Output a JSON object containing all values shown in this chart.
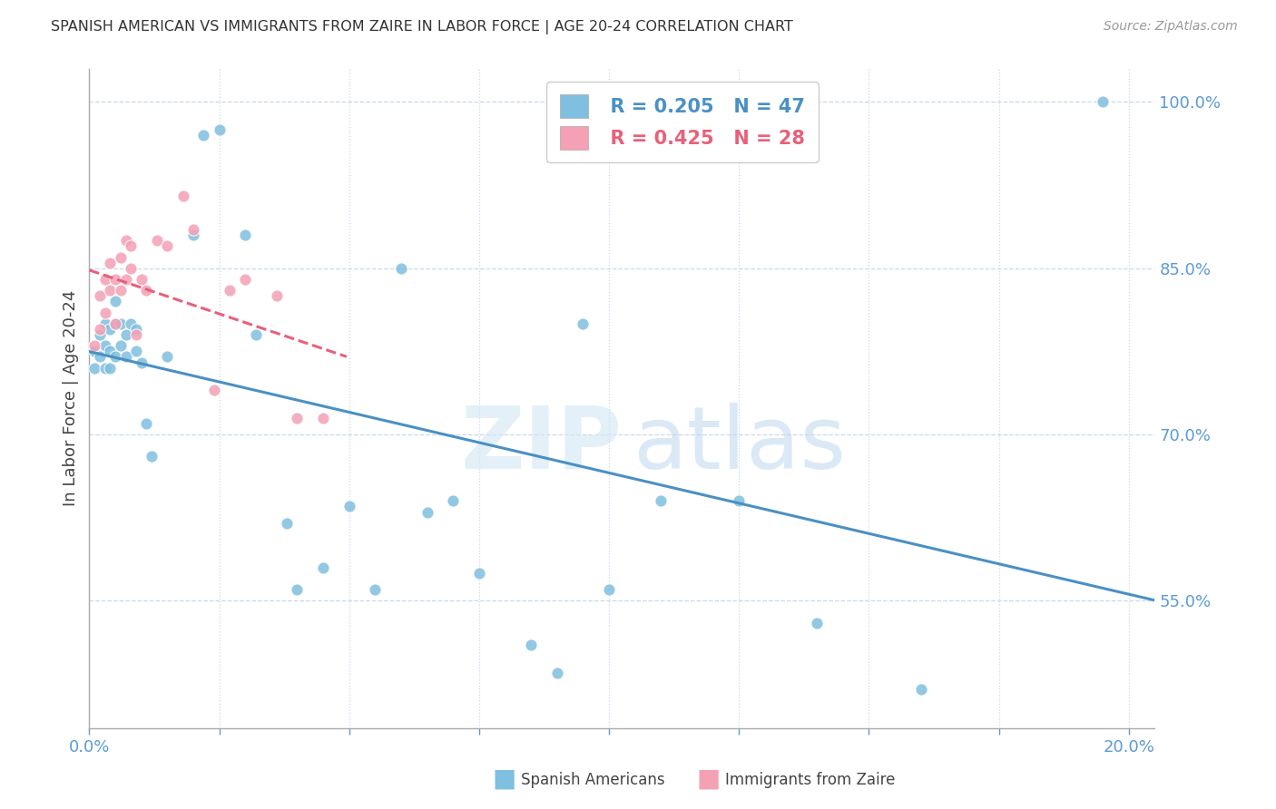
{
  "title": "SPANISH AMERICAN VS IMMIGRANTS FROM ZAIRE IN LABOR FORCE | AGE 20-24 CORRELATION CHART",
  "source": "Source: ZipAtlas.com",
  "ylabel": "In Labor Force | Age 20-24",
  "xlim": [
    0.0,
    0.205
  ],
  "ylim": [
    0.435,
    1.03
  ],
  "xtick_positions": [
    0.0,
    0.025,
    0.05,
    0.075,
    0.1,
    0.125,
    0.15,
    0.175,
    0.2
  ],
  "ytick_right": [
    0.55,
    0.7,
    0.85,
    1.0
  ],
  "ytick_right_labels": [
    "55.0%",
    "70.0%",
    "85.0%",
    "100.0%"
  ],
  "blue_color": "#7fbfdf",
  "pink_color": "#f4a0b5",
  "blue_line_color": "#4a90c4",
  "pink_line_color": "#e8607a",
  "legend_R_blue": "R = 0.205",
  "legend_N_blue": "N = 47",
  "legend_R_pink": "R = 0.425",
  "legend_N_pink": "N = 28",
  "blue_x": [
    0.001,
    0.001,
    0.002,
    0.002,
    0.003,
    0.003,
    0.003,
    0.004,
    0.004,
    0.004,
    0.005,
    0.005,
    0.005,
    0.006,
    0.006,
    0.007,
    0.007,
    0.008,
    0.009,
    0.009,
    0.01,
    0.011,
    0.012,
    0.015,
    0.02,
    0.022,
    0.025,
    0.03,
    0.032,
    0.038,
    0.04,
    0.045,
    0.05,
    0.055,
    0.06,
    0.065,
    0.07,
    0.075,
    0.085,
    0.09,
    0.095,
    0.1,
    0.11,
    0.125,
    0.14,
    0.16,
    0.195
  ],
  "blue_y": [
    0.775,
    0.76,
    0.79,
    0.77,
    0.8,
    0.78,
    0.76,
    0.795,
    0.775,
    0.76,
    0.8,
    0.82,
    0.77,
    0.8,
    0.78,
    0.79,
    0.77,
    0.8,
    0.795,
    0.775,
    0.765,
    0.71,
    0.68,
    0.77,
    0.88,
    0.97,
    0.975,
    0.88,
    0.79,
    0.62,
    0.56,
    0.58,
    0.635,
    0.56,
    0.85,
    0.63,
    0.64,
    0.575,
    0.51,
    0.485,
    0.8,
    0.56,
    0.64,
    0.64,
    0.53,
    0.47,
    1.0
  ],
  "pink_x": [
    0.001,
    0.002,
    0.002,
    0.003,
    0.003,
    0.004,
    0.004,
    0.005,
    0.005,
    0.006,
    0.006,
    0.007,
    0.007,
    0.008,
    0.008,
    0.009,
    0.01,
    0.011,
    0.013,
    0.015,
    0.018,
    0.02,
    0.024,
    0.027,
    0.03,
    0.036,
    0.04,
    0.045
  ],
  "pink_y": [
    0.78,
    0.795,
    0.825,
    0.81,
    0.84,
    0.83,
    0.855,
    0.8,
    0.84,
    0.83,
    0.86,
    0.84,
    0.875,
    0.85,
    0.87,
    0.79,
    0.84,
    0.83,
    0.875,
    0.87,
    0.915,
    0.885,
    0.74,
    0.83,
    0.84,
    0.825,
    0.715,
    0.715
  ]
}
